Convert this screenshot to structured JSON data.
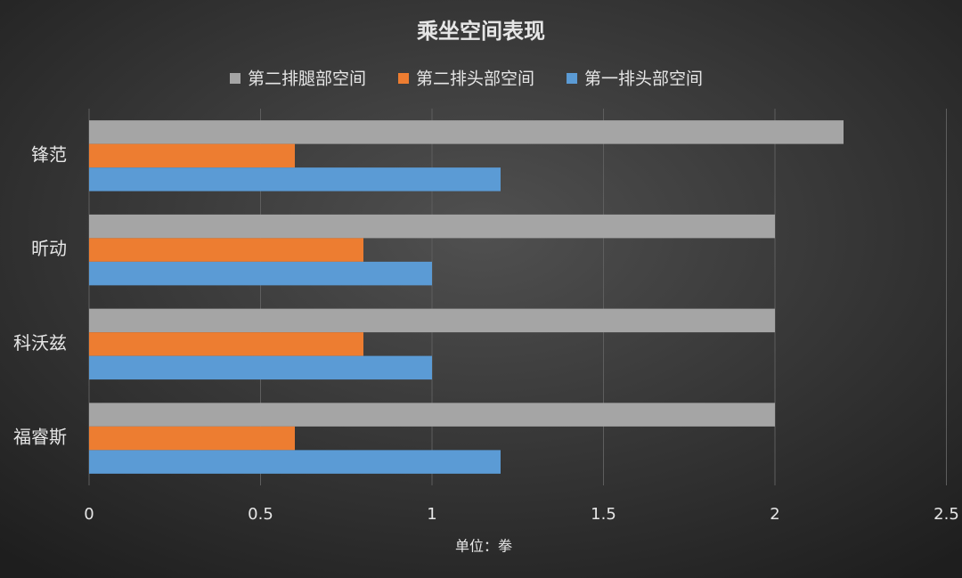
{
  "chart_data": {
    "type": "bar",
    "orientation": "horizontal",
    "title": "乘坐空间表现",
    "x_label": "单位：拳",
    "categories": [
      "锋范",
      "昕动",
      "科沃兹",
      "福睿斯"
    ],
    "series": [
      {
        "name": "第二排腿部空间",
        "color": "#a5a5a5",
        "values": [
          2.2,
          2,
          2,
          2
        ]
      },
      {
        "name": "第二排头部空间",
        "color": "#ed7d31",
        "values": [
          0.6,
          0.8,
          0.8,
          0.6
        ]
      },
      {
        "name": "第一排头部空间",
        "color": "#5b9bd5",
        "values": [
          1.2,
          1,
          1,
          1.2
        ]
      }
    ],
    "xlim": [
      0,
      2.5
    ],
    "xticks": [
      0,
      0.5,
      1,
      1.5,
      2,
      2.5
    ],
    "grid": true
  }
}
